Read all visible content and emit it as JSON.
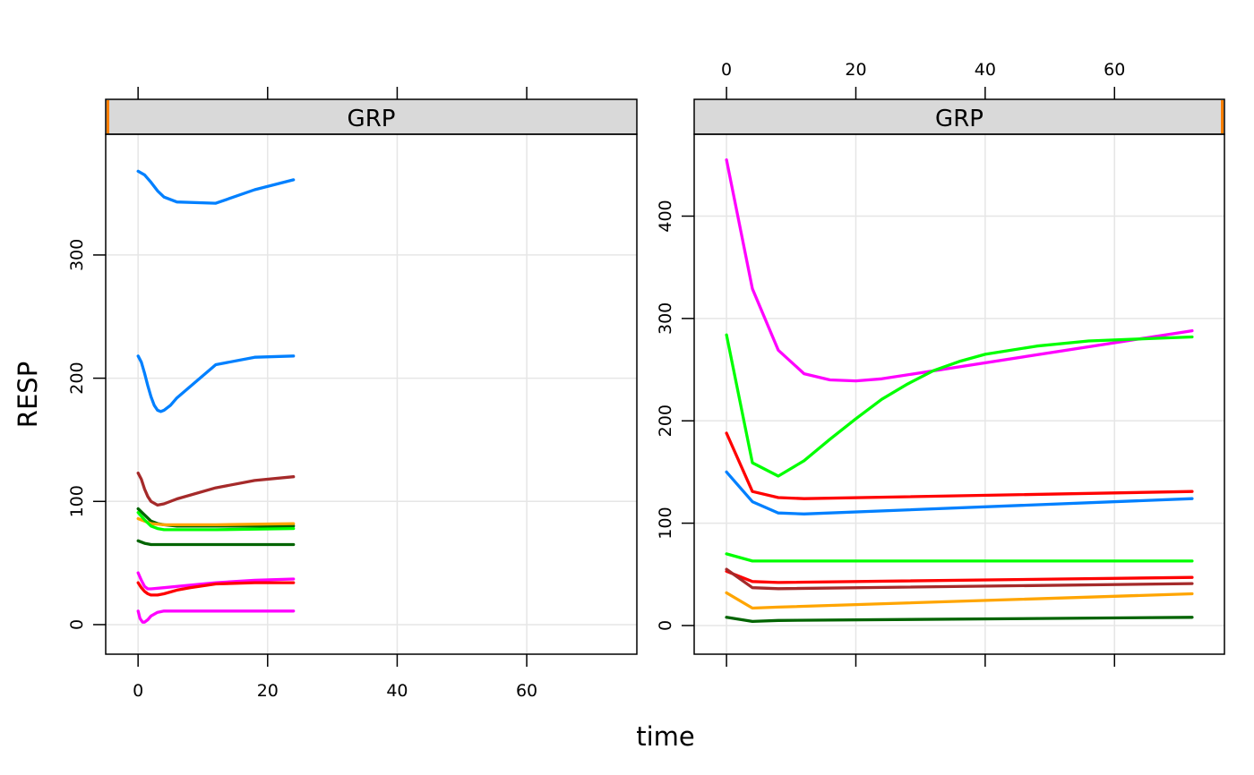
{
  "chart_data": [
    {
      "type": "line",
      "panel": "left",
      "strip_label": "GRP",
      "xlabel": "time",
      "ylabel": "RESP",
      "xlim": [
        -5,
        77
      ],
      "ylim": [
        -24,
        398
      ],
      "x_ticks": [
        0,
        20,
        40,
        60
      ],
      "y_ticks": [
        0,
        100,
        200,
        300
      ],
      "grid": true,
      "series": [
        {
          "color": "#0080ff",
          "x": [
            0,
            1,
            2,
            3,
            4,
            6,
            12,
            18,
            24
          ],
          "y": [
            368,
            365,
            359,
            352,
            347,
            343,
            342,
            353,
            361
          ]
        },
        {
          "color": "#0080ff",
          "x": [
            0,
            0.5,
            1,
            1.5,
            2,
            2.5,
            3,
            3.5,
            4,
            5,
            6,
            12,
            18,
            24
          ],
          "y": [
            218,
            213,
            204,
            194,
            185,
            178,
            174,
            173,
            174,
            178,
            184,
            211,
            217,
            218
          ]
        },
        {
          "color": "#a52a2a",
          "x": [
            0,
            0.5,
            1,
            1.5,
            2,
            3,
            4,
            6,
            12,
            18,
            24
          ],
          "y": [
            123,
            118,
            110,
            104,
            100,
            97,
            98,
            102,
            111,
            117,
            120
          ]
        },
        {
          "color": "#006400",
          "x": [
            0,
            1,
            2,
            3,
            4,
            6,
            12,
            24
          ],
          "y": [
            94,
            89,
            84,
            82,
            81,
            80,
            80,
            80
          ]
        },
        {
          "color": "#ffa500",
          "x": [
            0,
            1,
            2,
            4,
            6,
            12,
            24
          ],
          "y": [
            86,
            84,
            82,
            81,
            81,
            81,
            82
          ]
        },
        {
          "color": "#00ff00",
          "x": [
            0,
            1,
            2,
            3,
            4,
            6,
            12,
            24
          ],
          "y": [
            91,
            85,
            80,
            78,
            77,
            77,
            77,
            78
          ]
        },
        {
          "color": "#006400",
          "x": [
            0,
            1,
            2,
            3,
            6,
            12,
            24
          ],
          "y": [
            68,
            66,
            65,
            65,
            65,
            65,
            65
          ]
        },
        {
          "color": "#ff00ff",
          "x": [
            0,
            0.5,
            1,
            1.5,
            2,
            4,
            8,
            12,
            18,
            24
          ],
          "y": [
            42,
            36,
            31,
            29,
            29,
            30,
            32,
            34,
            36,
            37
          ]
        },
        {
          "color": "#ff0000",
          "x": [
            0,
            0.5,
            1,
            1.5,
            2,
            3,
            4,
            6,
            8,
            12,
            18,
            24
          ],
          "y": [
            34,
            30,
            27,
            25,
            24,
            24,
            25,
            28,
            30,
            33,
            34,
            34
          ]
        },
        {
          "color": "#ff00ff",
          "x": [
            0,
            0.3,
            0.7,
            1,
            1.5,
            2,
            3,
            4,
            6,
            12,
            24
          ],
          "y": [
            11,
            5,
            2,
            2,
            4,
            7,
            10,
            11,
            11,
            11,
            11
          ]
        }
      ]
    },
    {
      "type": "line",
      "panel": "right",
      "strip_label": "GRP",
      "xlabel": "time",
      "ylabel": "RESP",
      "xlim": [
        -5,
        77
      ],
      "ylim": [
        -28,
        480
      ],
      "x_ticks": [
        0,
        20,
        40,
        60
      ],
      "y_ticks": [
        0,
        100,
        200,
        300,
        400
      ],
      "grid": true,
      "series": [
        {
          "color": "#ff00ff",
          "x": [
            0,
            4,
            8,
            12,
            16,
            20,
            24,
            72
          ],
          "y": [
            455,
            329,
            269,
            246,
            240,
            239,
            241,
            288
          ]
        },
        {
          "color": "#00ff00",
          "x": [
            0,
            4,
            8,
            12,
            16,
            20,
            24,
            28,
            32,
            36,
            40,
            48,
            56,
            72
          ],
          "y": [
            284,
            159,
            146,
            161,
            182,
            202,
            221,
            236,
            249,
            258,
            265,
            273,
            278,
            282
          ]
        },
        {
          "color": "#ff0000",
          "x": [
            0,
            4,
            8,
            12,
            72
          ],
          "y": [
            188,
            131,
            125,
            124,
            131
          ]
        },
        {
          "color": "#0080ff",
          "x": [
            0,
            4,
            8,
            12,
            72
          ],
          "y": [
            150,
            121,
            110,
            109,
            124
          ]
        },
        {
          "color": "#00ff00",
          "x": [
            0,
            4,
            8,
            72
          ],
          "y": [
            70,
            63,
            63,
            63
          ]
        },
        {
          "color": "#ff0000",
          "x": [
            0,
            4,
            8,
            72
          ],
          "y": [
            53,
            43,
            42,
            47
          ]
        },
        {
          "color": "#a52a2a",
          "x": [
            0,
            4,
            8,
            72
          ],
          "y": [
            55,
            37,
            36,
            41
          ]
        },
        {
          "color": "#ffa500",
          "x": [
            0,
            4,
            8,
            72
          ],
          "y": [
            32,
            17,
            18,
            31
          ]
        },
        {
          "color": "#006400",
          "x": [
            0,
            4,
            8,
            72
          ],
          "y": [
            8,
            4,
            5,
            8
          ]
        }
      ]
    }
  ]
}
